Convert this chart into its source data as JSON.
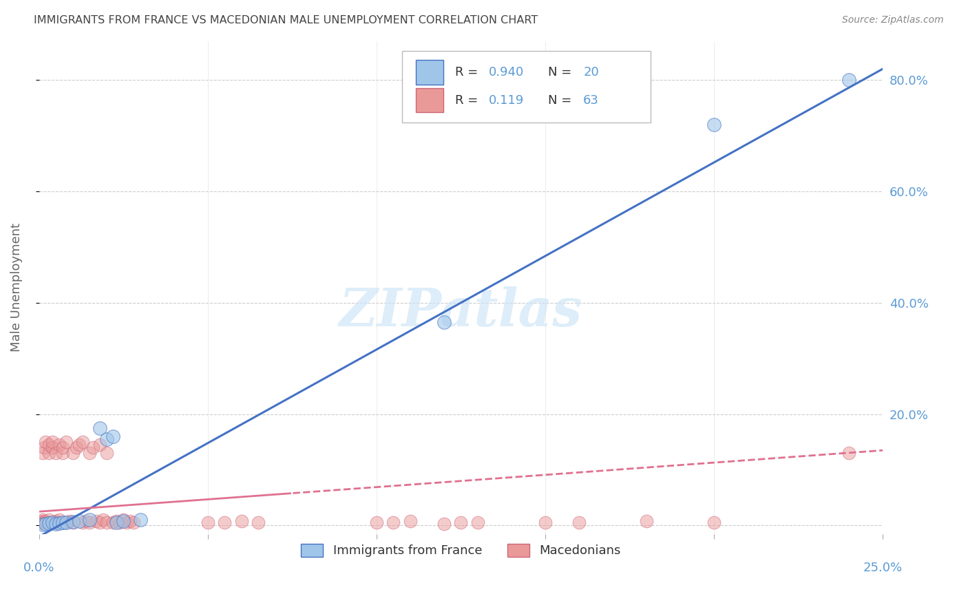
{
  "title": "IMMIGRANTS FROM FRANCE VS MACEDONIAN MALE UNEMPLOYMENT CORRELATION CHART",
  "source": "Source: ZipAtlas.com",
  "ylabel": "Male Unemployment",
  "yticks": [
    0.0,
    0.2,
    0.4,
    0.6,
    0.8
  ],
  "ytick_labels": [
    "",
    "20.0%",
    "40.0%",
    "60.0%",
    "80.0%"
  ],
  "xlim": [
    0.0,
    0.25
  ],
  "ylim": [
    -0.015,
    0.87
  ],
  "watermark": "ZIPatlas",
  "blue_scatter": [
    [
      0.001,
      0.002
    ],
    [
      0.002,
      0.003
    ],
    [
      0.003,
      0.004
    ],
    [
      0.004,
      0.005
    ],
    [
      0.005,
      0.003
    ],
    [
      0.006,
      0.004
    ],
    [
      0.007,
      0.005
    ],
    [
      0.008,
      0.006
    ],
    [
      0.01,
      0.007
    ],
    [
      0.012,
      0.008
    ],
    [
      0.015,
      0.01
    ],
    [
      0.018,
      0.175
    ],
    [
      0.02,
      0.155
    ],
    [
      0.022,
      0.16
    ],
    [
      0.023,
      0.006
    ],
    [
      0.025,
      0.008
    ],
    [
      0.03,
      0.01
    ],
    [
      0.12,
      0.365
    ],
    [
      0.2,
      0.72
    ],
    [
      0.24,
      0.8
    ]
  ],
  "pink_scatter": [
    [
      0.0005,
      0.005
    ],
    [
      0.0008,
      0.008
    ],
    [
      0.001,
      0.01
    ],
    [
      0.001,
      0.13
    ],
    [
      0.0012,
      0.005
    ],
    [
      0.0015,
      0.14
    ],
    [
      0.002,
      0.008
    ],
    [
      0.002,
      0.15
    ],
    [
      0.0022,
      0.005
    ],
    [
      0.003,
      0.01
    ],
    [
      0.003,
      0.13
    ],
    [
      0.003,
      0.145
    ],
    [
      0.004,
      0.005
    ],
    [
      0.004,
      0.14
    ],
    [
      0.004,
      0.15
    ],
    [
      0.005,
      0.008
    ],
    [
      0.005,
      0.13
    ],
    [
      0.005,
      0.005
    ],
    [
      0.006,
      0.145
    ],
    [
      0.006,
      0.01
    ],
    [
      0.007,
      0.13
    ],
    [
      0.007,
      0.14
    ],
    [
      0.008,
      0.005
    ],
    [
      0.008,
      0.15
    ],
    [
      0.009,
      0.008
    ],
    [
      0.01,
      0.13
    ],
    [
      0.01,
      0.005
    ],
    [
      0.011,
      0.14
    ],
    [
      0.012,
      0.145
    ],
    [
      0.013,
      0.005
    ],
    [
      0.013,
      0.15
    ],
    [
      0.014,
      0.008
    ],
    [
      0.015,
      0.13
    ],
    [
      0.015,
      0.005
    ],
    [
      0.016,
      0.14
    ],
    [
      0.017,
      0.008
    ],
    [
      0.018,
      0.005
    ],
    [
      0.018,
      0.145
    ],
    [
      0.019,
      0.01
    ],
    [
      0.02,
      0.005
    ],
    [
      0.02,
      0.13
    ],
    [
      0.022,
      0.005
    ],
    [
      0.023,
      0.008
    ],
    [
      0.024,
      0.005
    ],
    [
      0.025,
      0.01
    ],
    [
      0.026,
      0.005
    ],
    [
      0.027,
      0.008
    ],
    [
      0.028,
      0.005
    ],
    [
      0.05,
      0.005
    ],
    [
      0.055,
      0.005
    ],
    [
      0.06,
      0.008
    ],
    [
      0.065,
      0.005
    ],
    [
      0.1,
      0.005
    ],
    [
      0.105,
      0.005
    ],
    [
      0.11,
      0.008
    ],
    [
      0.12,
      0.003
    ],
    [
      0.125,
      0.005
    ],
    [
      0.13,
      0.005
    ],
    [
      0.15,
      0.005
    ],
    [
      0.16,
      0.005
    ],
    [
      0.18,
      0.008
    ],
    [
      0.2,
      0.005
    ],
    [
      0.24,
      0.13
    ]
  ],
  "blue_line_color": "#4472c4",
  "pink_line_color": "#e07090",
  "grid_color": "#cccccc",
  "background_color": "#ffffff",
  "title_color": "#444444",
  "axis_color": "#5b9bd5",
  "scatter_blue_color": "#9fc5e8",
  "scatter_pink_color": "#ea9999"
}
